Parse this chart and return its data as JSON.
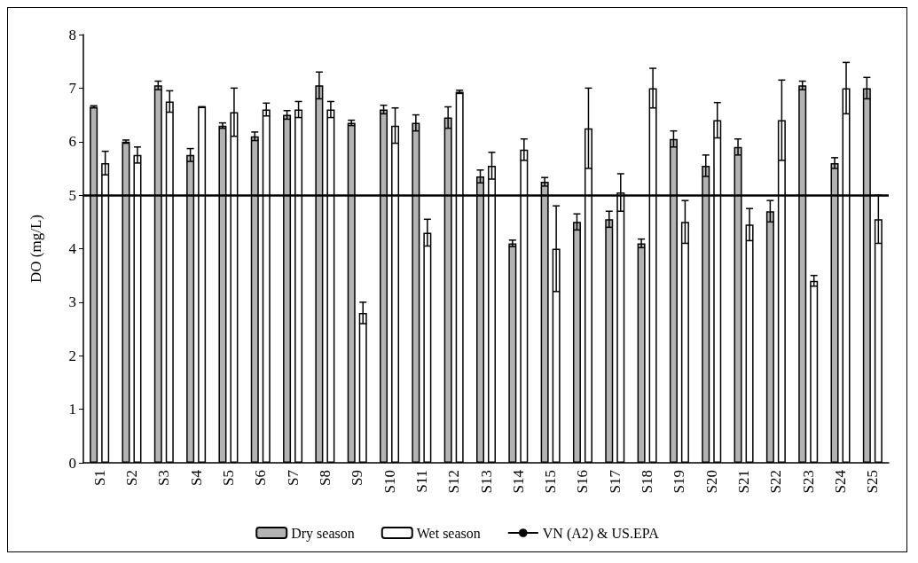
{
  "chart_data": {
    "type": "bar",
    "ylabel": "DO (mg/L)",
    "categories": [
      "S1",
      "S2",
      "S3",
      "S4",
      "S5",
      "S6",
      "S7",
      "S8",
      "S9",
      "S10",
      "S11",
      "S12",
      "S13",
      "S14",
      "S15",
      "S16",
      "S17",
      "S18",
      "S19",
      "S20",
      "S21",
      "S22",
      "S23",
      "S24",
      "S25"
    ],
    "series": [
      {
        "name": "Dry season",
        "color": "#b3b3b3",
        "values": [
          6.65,
          6.0,
          7.05,
          5.75,
          6.3,
          6.1,
          6.5,
          7.05,
          6.35,
          6.6,
          6.35,
          6.45,
          5.35,
          4.1,
          5.25,
          4.5,
          4.55,
          4.1,
          6.05,
          5.55,
          5.9,
          4.7,
          7.05,
          5.6,
          7.0
        ],
        "errors": [
          0.02,
          0.03,
          0.08,
          0.12,
          0.05,
          0.08,
          0.08,
          0.25,
          0.05,
          0.08,
          0.15,
          0.2,
          0.12,
          0.06,
          0.08,
          0.15,
          0.15,
          0.08,
          0.15,
          0.2,
          0.15,
          0.2,
          0.08,
          0.1,
          0.2
        ]
      },
      {
        "name": "Wet season",
        "color": "#ffffff",
        "values": [
          5.6,
          5.75,
          6.75,
          6.65,
          6.55,
          6.6,
          6.6,
          6.6,
          2.8,
          6.3,
          4.3,
          6.93,
          5.55,
          5.85,
          4.0,
          6.25,
          5.05,
          7.0,
          4.5,
          6.4,
          4.45,
          6.4,
          3.4,
          7.0,
          4.55
        ],
        "errors": [
          0.22,
          0.15,
          0.2,
          0,
          0.45,
          0.12,
          0.15,
          0.15,
          0.2,
          0.33,
          0.25,
          0.03,
          0.25,
          0.2,
          0.8,
          0.75,
          0.35,
          0.37,
          0.4,
          0.33,
          0.3,
          0.75,
          0.1,
          0.48,
          0.45
        ]
      }
    ],
    "ref_lines": [
      {
        "axis": "y",
        "value": 5,
        "label": "VN (A2) & US.EPA",
        "color": "#000000",
        "line_style": "solid"
      }
    ],
    "ylim": [
      0,
      8
    ],
    "yticks": [
      0,
      1,
      2,
      3,
      4,
      5,
      6,
      7,
      8
    ],
    "grid": false,
    "legend": "bottom"
  }
}
